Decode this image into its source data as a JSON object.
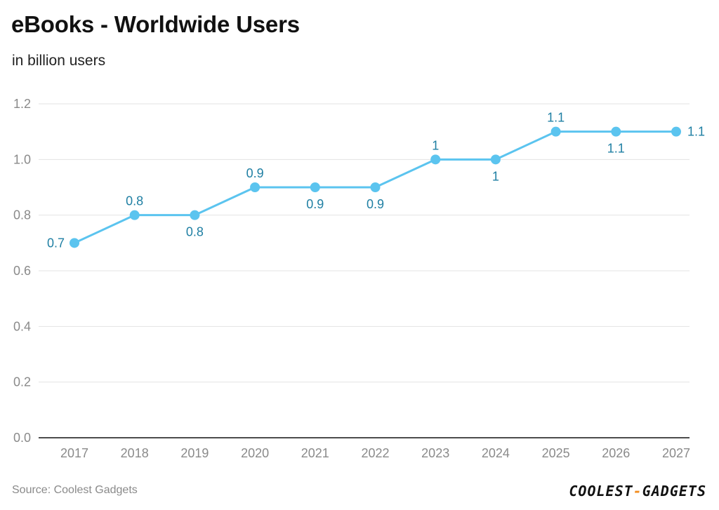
{
  "chart_data": {
    "type": "line",
    "title": "eBooks - Worldwide Users",
    "subtitle": "in billion users",
    "xlabel": "",
    "ylabel": "",
    "categories": [
      "2017",
      "2018",
      "2019",
      "2020",
      "2021",
      "2022",
      "2023",
      "2024",
      "2025",
      "2026",
      "2027"
    ],
    "series": [
      {
        "name": "Worldwide Users",
        "values": [
          0.7,
          0.8,
          0.8,
          0.9,
          0.9,
          0.9,
          1.0,
          1.0,
          1.1,
          1.1,
          1.1
        ],
        "labels": [
          "0.7",
          "0.8",
          "0.8",
          "0.9",
          "0.9",
          "0.9",
          "1",
          "1",
          "1.1",
          "1.1",
          "1.1"
        ],
        "label_positions": [
          "left",
          "above",
          "below",
          "above",
          "below",
          "below",
          "above",
          "below",
          "above",
          "below",
          "right"
        ]
      }
    ],
    "ylim": [
      0,
      1.2
    ],
    "yticks": [
      "0.0",
      "0.2",
      "0.4",
      "0.6",
      "0.8",
      "1.0",
      "1.2"
    ],
    "ytick_values": [
      0,
      0.2,
      0.4,
      0.6,
      0.8,
      1.0,
      1.2
    ],
    "grid": true,
    "legend": "none"
  },
  "colors": {
    "line": "#5bc4ef",
    "label": "#1f7fa3",
    "grid": "#e3e3e3",
    "axis": "#111111",
    "logo_accent": "#f28c1f"
  },
  "footer": {
    "source": "Source: Coolest Gadgets",
    "logo_left": "COOLEST",
    "logo_dash": "-",
    "logo_right": "GADGETS"
  }
}
